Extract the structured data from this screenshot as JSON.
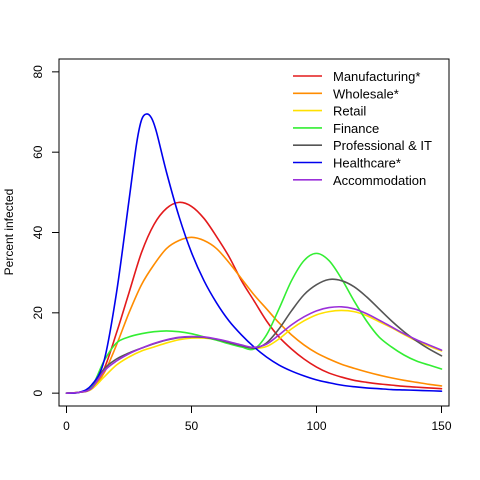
{
  "chart_data": {
    "type": "line",
    "title": "",
    "xlabel": "",
    "ylabel": "Percent infected",
    "xlim": [
      -3,
      153
    ],
    "ylim": [
      -3.2,
      83.2
    ],
    "xticks": [
      0,
      50,
      100,
      150
    ],
    "yticks": [
      0,
      20,
      40,
      60,
      80
    ],
    "grid": false,
    "legend_position": "top-right",
    "series": [
      {
        "name": "Manufacturing*",
        "color": "#e31a1c",
        "points": [
          [
            0,
            0
          ],
          [
            5,
            0.2
          ],
          [
            10,
            1.2
          ],
          [
            15,
            6
          ],
          [
            20,
            15
          ],
          [
            25,
            25
          ],
          [
            30,
            35
          ],
          [
            35,
            42
          ],
          [
            40,
            46
          ],
          [
            45,
            47.5
          ],
          [
            50,
            46.5
          ],
          [
            55,
            43.5
          ],
          [
            60,
            39
          ],
          [
            65,
            34
          ],
          [
            70,
            28
          ],
          [
            75,
            23
          ],
          [
            80,
            18
          ],
          [
            85,
            14
          ],
          [
            90,
            11
          ],
          [
            95,
            8.5
          ],
          [
            100,
            6.5
          ],
          [
            105,
            5
          ],
          [
            110,
            4
          ],
          [
            115,
            3.2
          ],
          [
            120,
            2.7
          ],
          [
            125,
            2.3
          ],
          [
            130,
            2
          ],
          [
            135,
            1.7
          ],
          [
            140,
            1.5
          ],
          [
            145,
            1.3
          ],
          [
            150,
            1.1
          ]
        ]
      },
      {
        "name": "Wholesale*",
        "color": "#ff8c00",
        "points": [
          [
            0,
            0
          ],
          [
            5,
            0.2
          ],
          [
            10,
            1
          ],
          [
            15,
            5
          ],
          [
            20,
            12
          ],
          [
            25,
            20
          ],
          [
            30,
            27
          ],
          [
            35,
            32
          ],
          [
            40,
            36
          ],
          [
            45,
            38
          ],
          [
            50,
            38.8
          ],
          [
            55,
            38
          ],
          [
            60,
            36
          ],
          [
            65,
            32.5
          ],
          [
            70,
            28.5
          ],
          [
            75,
            24.5
          ],
          [
            80,
            21
          ],
          [
            85,
            17.5
          ],
          [
            90,
            14.5
          ],
          [
            95,
            12
          ],
          [
            100,
            10
          ],
          [
            105,
            8.5
          ],
          [
            110,
            7.2
          ],
          [
            115,
            6.2
          ],
          [
            120,
            5.3
          ],
          [
            125,
            4.5
          ],
          [
            130,
            3.8
          ],
          [
            135,
            3.2
          ],
          [
            140,
            2.7
          ],
          [
            145,
            2.2
          ],
          [
            150,
            1.8
          ]
        ]
      },
      {
        "name": "Retail",
        "color": "#ffe000",
        "points": [
          [
            0,
            0
          ],
          [
            5,
            0.2
          ],
          [
            10,
            1
          ],
          [
            15,
            4
          ],
          [
            20,
            7
          ],
          [
            25,
            9
          ],
          [
            30,
            10.5
          ],
          [
            35,
            11.5
          ],
          [
            40,
            12.5
          ],
          [
            45,
            13.3
          ],
          [
            50,
            13.7
          ],
          [
            55,
            13.7
          ],
          [
            60,
            13.3
          ],
          [
            65,
            12.6
          ],
          [
            70,
            11.9
          ],
          [
            75,
            11.2
          ],
          [
            80,
            11.6
          ],
          [
            85,
            13.5
          ],
          [
            90,
            16
          ],
          [
            95,
            18
          ],
          [
            100,
            19.5
          ],
          [
            105,
            20.3
          ],
          [
            110,
            20.6
          ],
          [
            115,
            20.3
          ],
          [
            120,
            19.3
          ],
          [
            125,
            17.8
          ],
          [
            130,
            16.3
          ],
          [
            135,
            14.6
          ],
          [
            140,
            13
          ],
          [
            145,
            11.7
          ],
          [
            150,
            10.5
          ]
        ]
      },
      {
        "name": "Finance",
        "color": "#33ee33",
        "points": [
          [
            0,
            0
          ],
          [
            5,
            0.2
          ],
          [
            10,
            1.5
          ],
          [
            15,
            8
          ],
          [
            20,
            12.5
          ],
          [
            25,
            14
          ],
          [
            30,
            14.8
          ],
          [
            35,
            15.3
          ],
          [
            40,
            15.5
          ],
          [
            45,
            15.3
          ],
          [
            50,
            14.8
          ],
          [
            55,
            14
          ],
          [
            60,
            13.2
          ],
          [
            65,
            12.3
          ],
          [
            70,
            11.5
          ],
          [
            75,
            11
          ],
          [
            80,
            14.5
          ],
          [
            85,
            21
          ],
          [
            90,
            28
          ],
          [
            95,
            33
          ],
          [
            100,
            34.8
          ],
          [
            105,
            33
          ],
          [
            110,
            28.5
          ],
          [
            115,
            23
          ],
          [
            120,
            18
          ],
          [
            125,
            14
          ],
          [
            130,
            11.5
          ],
          [
            135,
            9.5
          ],
          [
            140,
            8
          ],
          [
            145,
            7
          ],
          [
            150,
            6
          ]
        ]
      },
      {
        "name": "Professional & IT",
        "color": "#555555",
        "points": [
          [
            0,
            0
          ],
          [
            5,
            0.2
          ],
          [
            10,
            1.2
          ],
          [
            15,
            6
          ],
          [
            20,
            8.5
          ],
          [
            25,
            10
          ],
          [
            30,
            11.2
          ],
          [
            35,
            12.3
          ],
          [
            40,
            13.2
          ],
          [
            45,
            13.8
          ],
          [
            50,
            14
          ],
          [
            55,
            13.9
          ],
          [
            60,
            13.4
          ],
          [
            65,
            12.6
          ],
          [
            70,
            11.8
          ],
          [
            75,
            11.2
          ],
          [
            80,
            12.5
          ],
          [
            85,
            16
          ],
          [
            90,
            20.5
          ],
          [
            95,
            24.5
          ],
          [
            100,
            27
          ],
          [
            105,
            28.3
          ],
          [
            110,
            28
          ],
          [
            115,
            26.5
          ],
          [
            120,
            24
          ],
          [
            125,
            21
          ],
          [
            130,
            18
          ],
          [
            135,
            15.3
          ],
          [
            140,
            13
          ],
          [
            145,
            11
          ],
          [
            150,
            9.3
          ]
        ]
      },
      {
        "name": "Healthcare*",
        "color": "#0000ee",
        "points": [
          [
            0,
            0
          ],
          [
            5,
            0.2
          ],
          [
            10,
            2
          ],
          [
            15,
            8
          ],
          [
            20,
            25
          ],
          [
            25,
            48
          ],
          [
            28,
            62
          ],
          [
            30,
            68
          ],
          [
            32,
            69.5
          ],
          [
            34,
            68.5
          ],
          [
            36,
            65
          ],
          [
            40,
            55
          ],
          [
            45,
            44
          ],
          [
            50,
            35
          ],
          [
            55,
            28
          ],
          [
            60,
            22.5
          ],
          [
            65,
            18
          ],
          [
            70,
            14.5
          ],
          [
            75,
            11.5
          ],
          [
            80,
            9
          ],
          [
            85,
            7
          ],
          [
            90,
            5.5
          ],
          [
            95,
            4.3
          ],
          [
            100,
            3.3
          ],
          [
            105,
            2.6
          ],
          [
            110,
            2
          ],
          [
            115,
            1.6
          ],
          [
            120,
            1.3
          ],
          [
            125,
            1.1
          ],
          [
            130,
            0.9
          ],
          [
            135,
            0.8
          ],
          [
            140,
            0.7
          ],
          [
            145,
            0.6
          ],
          [
            150,
            0.5
          ]
        ]
      },
      {
        "name": "Accommodation",
        "color": "#9b30d9",
        "points": [
          [
            0,
            0
          ],
          [
            5,
            0.2
          ],
          [
            10,
            1.2
          ],
          [
            15,
            5.5
          ],
          [
            20,
            8
          ],
          [
            25,
            9.8
          ],
          [
            30,
            11.2
          ],
          [
            35,
            12.4
          ],
          [
            40,
            13.3
          ],
          [
            45,
            13.9
          ],
          [
            50,
            14.1
          ],
          [
            55,
            14
          ],
          [
            60,
            13.5
          ],
          [
            65,
            12.8
          ],
          [
            70,
            12
          ],
          [
            75,
            11.4
          ],
          [
            80,
            12.2
          ],
          [
            85,
            14.5
          ],
          [
            90,
            17
          ],
          [
            95,
            19
          ],
          [
            100,
            20.5
          ],
          [
            105,
            21.3
          ],
          [
            110,
            21.5
          ],
          [
            115,
            21
          ],
          [
            120,
            19.8
          ],
          [
            125,
            18.2
          ],
          [
            130,
            16.5
          ],
          [
            135,
            14.8
          ],
          [
            140,
            13.3
          ],
          [
            145,
            12
          ],
          [
            150,
            10.7
          ]
        ]
      }
    ]
  }
}
